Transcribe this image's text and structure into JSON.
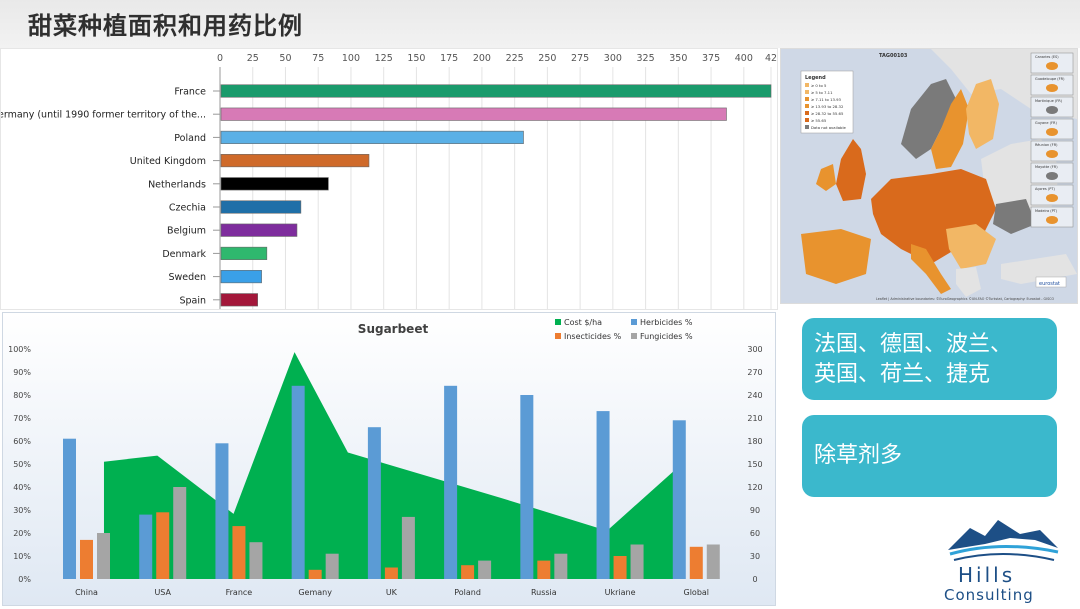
{
  "slide_title": "甜菜种植面积和用药比例",
  "callouts": {
    "countries_line1": "法国、德国、波兰、",
    "countries_line2": "英国、荷兰、捷克",
    "herbicide": "除草剂多"
  },
  "logo": {
    "line1": "Hills",
    "line2": "Consulting"
  },
  "map": {
    "title": "TAG00103",
    "legend_title": "Legend",
    "legend": [
      "≥ 0 to 5",
      "≥ 5 to 7.11",
      "≥ 7.11 to 13.93",
      "≥ 13.93 to 28.32",
      "≥ 28.32 to 55.65",
      "≥ 55.65",
      "Data not available"
    ],
    "insets": [
      "Canaries (ES)",
      "Guadeloupe (FR)",
      "Martinique (FR)",
      "Guyane (FR)",
      "Réunion (FR)",
      "Mayotte (FR)",
      "Açores (PT)",
      "Madeira (PT)"
    ],
    "credits": "Leaflet | Administrative boundaries: ©EuroGeographics ©UN-FAO ©Turkstat, Cartography: Eurostat - GISCO",
    "brand": "eurostat",
    "colors": {
      "sea": "#cfd8e6",
      "land": "#e5e5e5",
      "high": "#d96a1c",
      "mid": "#e8932e",
      "low": "#f2b765",
      "none": "#7a7a7a"
    }
  },
  "chart_data": [
    {
      "type": "bar",
      "orientation": "horizontal",
      "categories": [
        "France",
        "Germany (until 1990 former territory of the...",
        "Poland",
        "United Kingdom",
        "Netherlands",
        "Czechia",
        "Belgium",
        "Denmark",
        "Sweden",
        "Spain"
      ],
      "values": [
        420,
        386,
        231,
        113,
        82,
        61,
        58,
        35,
        31,
        28
      ],
      "colors": [
        "#1a9b6c",
        "#d77ab6",
        "#5ab0e6",
        "#cf6a2a",
        "#000000",
        "#1f6fa8",
        "#7e2d9d",
        "#2fb86e",
        "#3aa0e8",
        "#a3173a"
      ],
      "xticks": [
        0,
        25,
        50,
        75,
        100,
        125,
        150,
        175,
        200,
        225,
        250,
        275,
        300,
        325,
        350,
        375,
        400,
        "42"
      ],
      "xlim": [
        0,
        420
      ]
    },
    {
      "type": "bar",
      "title": "Sugarbeet",
      "categories": [
        "China",
        "USA",
        "France",
        "Gemany",
        "UK",
        "Poland",
        "Russia",
        "Ukriane",
        "Global"
      ],
      "series": [
        {
          "name": "Herbicides %",
          "color": "#5b9bd5",
          "values": [
            61,
            28,
            59,
            84,
            66,
            84,
            80,
            73,
            69
          ]
        },
        {
          "name": "Insecticides %",
          "color": "#ed7d31",
          "values": [
            17,
            29,
            23,
            4,
            5,
            6,
            8,
            10,
            14
          ]
        },
        {
          "name": "Fungicides %",
          "color": "#a5a5a5",
          "values": [
            20,
            40,
            16,
            11,
            27,
            8,
            11,
            15,
            15
          ]
        }
      ],
      "area_series": {
        "name": "Cost $/ha",
        "color": "#00b050",
        "points": [
          {
            "x": 0.3,
            "y": 153
          },
          {
            "x": 1.0,
            "y": 161
          },
          {
            "x": 2.0,
            "y": 85
          },
          {
            "x": 2.8,
            "y": 296
          },
          {
            "x": 3.5,
            "y": 165
          },
          {
            "x": 5.5,
            "y": 106
          },
          {
            "x": 6.9,
            "y": 63
          },
          {
            "x": 7.8,
            "y": 143
          }
        ]
      },
      "yticks_left": [
        "0%",
        "10%",
        "20%",
        "30%",
        "40%",
        "50%",
        "60%",
        "70%",
        "80%",
        "90%",
        "100%"
      ],
      "yticks_right": [
        0,
        30,
        60,
        90,
        120,
        150,
        180,
        210,
        240,
        270,
        300
      ],
      "ylim_left": [
        0,
        100
      ],
      "ylim_right": [
        0,
        300
      ],
      "legend": [
        "Cost $/ha",
        "Herbicides %",
        "Insecticides %",
        "Fungicides %"
      ],
      "legend_position": "top-right"
    }
  ]
}
